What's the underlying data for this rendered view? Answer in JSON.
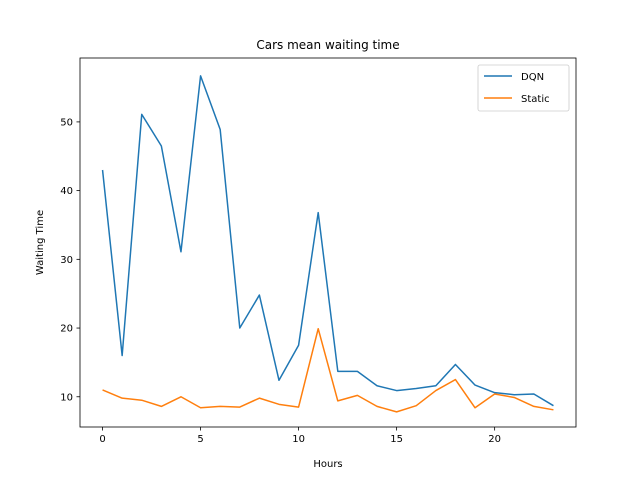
{
  "chart_data": {
    "type": "line",
    "title": "Cars mean waiting time",
    "xlabel": "Hours",
    "ylabel": "Waiting Time",
    "xlim": [
      -1.15,
      24.15
    ],
    "ylim": [
      5.6,
      59.3
    ],
    "xticks": [
      0,
      5,
      10,
      15,
      20
    ],
    "yticks": [
      10,
      20,
      30,
      40,
      50
    ],
    "grid": false,
    "legend": "top-right",
    "x": [
      0,
      1,
      2,
      3,
      4,
      5,
      6,
      7,
      8,
      9,
      10,
      11,
      12,
      13,
      14,
      15,
      16,
      17,
      18,
      19,
      20,
      21,
      22,
      23
    ],
    "series": [
      {
        "name": "DQN",
        "color": "#1f77b4",
        "values": [
          43.0,
          16.0,
          51.1,
          46.5,
          31.1,
          56.7,
          48.9,
          20.0,
          24.8,
          12.4,
          17.5,
          36.8,
          13.7,
          13.7,
          11.6,
          10.9,
          11.2,
          11.6,
          14.7,
          11.7,
          10.6,
          10.3,
          10.4,
          8.7
        ]
      },
      {
        "name": "Static",
        "color": "#ff7f0e",
        "values": [
          11.0,
          9.8,
          9.5,
          8.6,
          10.0,
          8.4,
          8.6,
          8.5,
          9.8,
          8.9,
          8.5,
          19.9,
          9.4,
          10.2,
          8.6,
          7.8,
          8.7,
          10.9,
          12.5,
          8.4,
          10.4,
          9.9,
          8.6,
          8.1
        ]
      }
    ]
  }
}
